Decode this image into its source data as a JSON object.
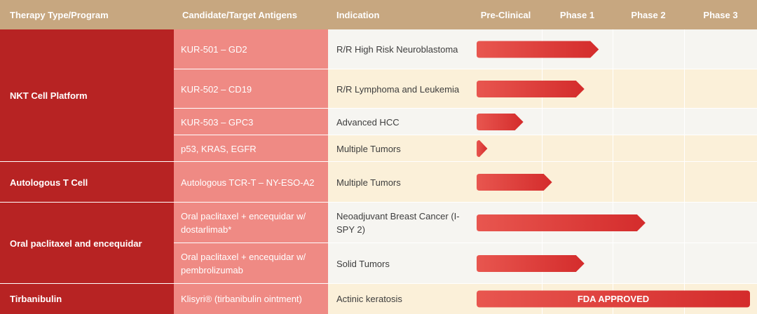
{
  "headers": {
    "program": "Therapy Type/Program",
    "candidate": "Candidate/Target Antigens",
    "indication": "Indication",
    "preclinical": "Pre-Clinical",
    "phase1": "Phase 1",
    "phase2": "Phase 2",
    "phase3": "Phase 3"
  },
  "programs": [
    {
      "name": "NKT Cell Platform"
    },
    {
      "name": "Autologous T Cell"
    },
    {
      "name": "Oral paclitaxel and encequidar"
    },
    {
      "name": "Tirbanibulin"
    }
  ],
  "rows": [
    {
      "candidate": "KUR-501 – GD2",
      "indication": "R/R High Risk Neuroblastoma"
    },
    {
      "candidate": "KUR-502 – CD19",
      "indication": "R/R Lymphoma and Leukemia"
    },
    {
      "candidate": "KUR-503 – GPC3",
      "indication": "Advanced HCC"
    },
    {
      "candidate": "p53, KRAS, EGFR",
      "indication": "Multiple Tumors"
    },
    {
      "candidate": "Autologous TCR-T – NY-ESO-A2",
      "indication": "Multiple Tumors"
    },
    {
      "candidate": "Oral paclitaxel + encequidar w/ dostarlimab*",
      "indication": "Neoadjuvant Breast Cancer (I-SPY 2)"
    },
    {
      "candidate": "Oral paclitaxel + encequidar w/ pembrolizumab",
      "indication": "Solid Tumors"
    },
    {
      "candidate": "Klisyri® (tirbanibulin ointment)",
      "indication": "Actinic keratosis"
    }
  ],
  "chart_data": {
    "type": "bar",
    "title": "",
    "stages": [
      "Pre-Clinical",
      "Phase 1",
      "Phase 2",
      "Phase 3"
    ],
    "categories": [
      "KUR-501 – GD2",
      "KUR-502 – CD19",
      "KUR-503 – GPC3",
      "p53, KRAS, EGFR",
      "Autologous TCR-T – NY-ESO-A2",
      "Oral paclitaxel + encequidar w/ dostarlimab*",
      "Oral paclitaxel + encequidar w/ pembrolizumab",
      "Klisyri® (tirbanibulin ointment)"
    ],
    "values": [
      1.7,
      1.5,
      0.65,
      0.15,
      1.05,
      2.35,
      1.5,
      4.0
    ],
    "xlim": [
      0,
      4
    ],
    "bar_color": "#d42c2c",
    "annotations": [
      "",
      "",
      "",
      "",
      "",
      "",
      "",
      "FDA APPROVED"
    ]
  },
  "colors": {
    "header": "#c7a780",
    "program": "#b72323",
    "candidate": "#ef8a84",
    "row_light": "#f6f5f1",
    "row_cream": "#fbf0d9"
  }
}
